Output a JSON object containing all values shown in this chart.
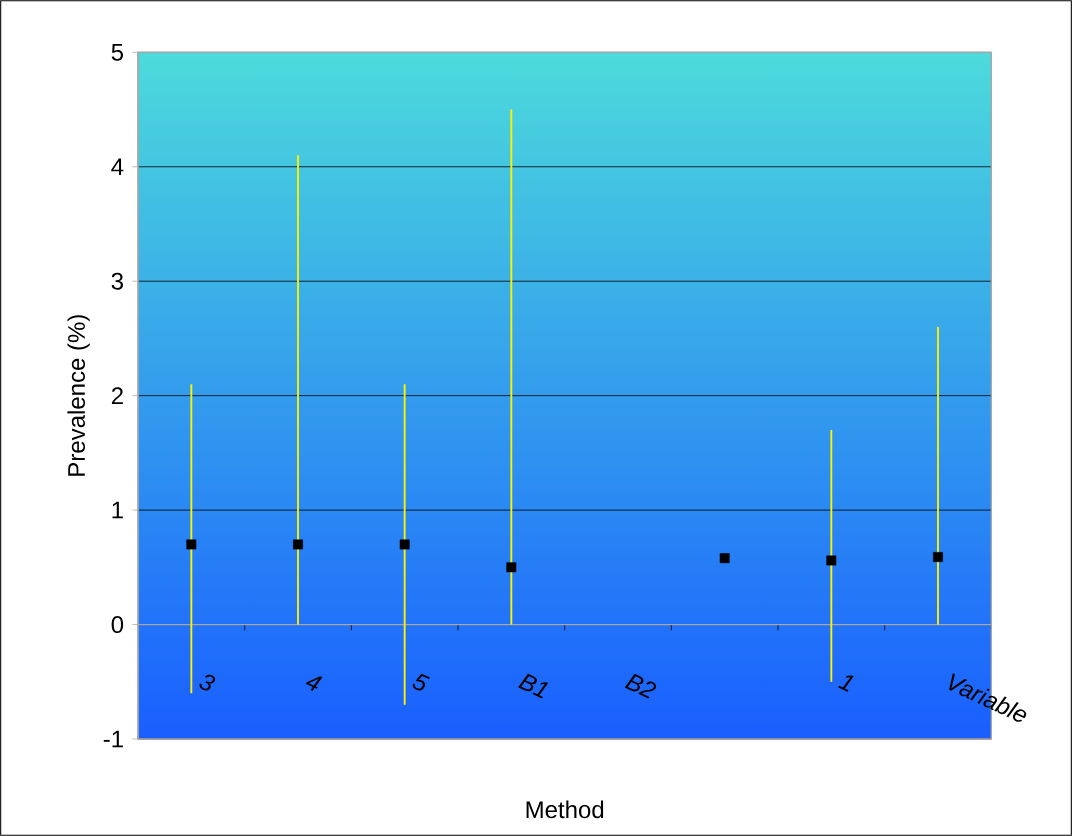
{
  "chart_data": {
    "type": "scatter",
    "xlabel": "Method",
    "ylabel": "Prevalence (%)",
    "categories": [
      "3",
      "4",
      "5",
      "B1",
      "B2",
      null,
      "1",
      "Variable"
    ],
    "values": [
      0.7,
      0.7,
      0.7,
      0.5,
      null,
      0.58,
      0.56,
      0.59
    ],
    "errors": [
      [
        -0.6,
        2.1
      ],
      [
        0,
        4.1
      ],
      [
        -0.7,
        2.1
      ],
      [
        0,
        4.5
      ],
      null,
      null,
      [
        -0.5,
        1.7
      ],
      [
        0,
        2.6
      ]
    ],
    "color": "#000000",
    "marker": "square",
    "grid": "y",
    "ylim": [
      -1,
      5
    ],
    "yticks": [
      -1,
      0,
      1,
      2,
      3,
      4,
      5
    ]
  }
}
